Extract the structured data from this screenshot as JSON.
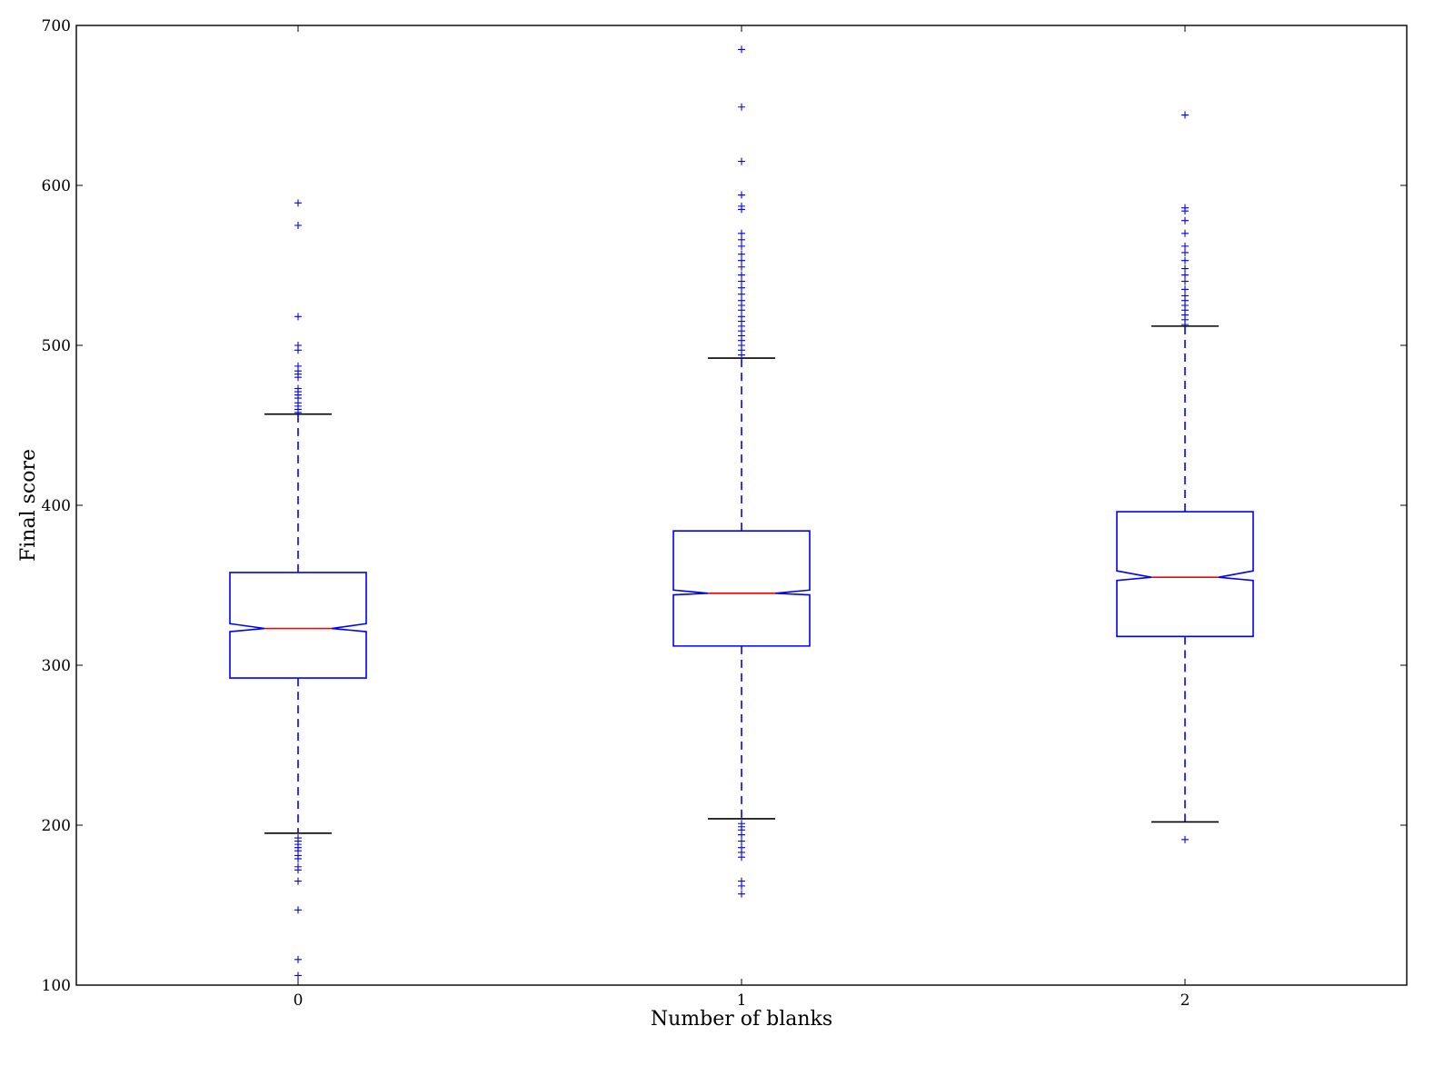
{
  "chart_data": {
    "type": "box",
    "title": "",
    "xlabel": "Number of blanks",
    "ylabel": "Final score",
    "ylim": [
      100,
      700
    ],
    "y_ticks": [
      100,
      200,
      300,
      400,
      500,
      600,
      700
    ],
    "categories": [
      "0",
      "1",
      "2"
    ],
    "notched": true,
    "grid": false,
    "colors": {
      "box": "#0000ff",
      "median": "#ff0000",
      "whisker_line": "#0000ff",
      "cap": "#000000",
      "flier": "#0000ff"
    },
    "boxes": [
      {
        "category": "0",
        "whisker_low": 195,
        "q1": 292,
        "median": 323,
        "q3": 358,
        "whisker_high": 457,
        "notch_low": 321,
        "notch_high": 326,
        "fliers": [
          106,
          116,
          147,
          165,
          172,
          174,
          179,
          181,
          184,
          186,
          188,
          190,
          192,
          458,
          460,
          462,
          464,
          467,
          469,
          471,
          473,
          480,
          482,
          484,
          487,
          497,
          500,
          518,
          575,
          589
        ]
      },
      {
        "category": "1",
        "whisker_low": 204,
        "q1": 312,
        "median": 345,
        "q3": 384,
        "whisker_high": 492,
        "notch_low": 344,
        "notch_high": 347,
        "fliers": [
          157,
          162,
          165,
          180,
          183,
          186,
          190,
          194,
          197,
          199,
          201,
          494,
          497,
          500,
          503,
          506,
          509,
          512,
          515,
          518,
          522,
          525,
          528,
          532,
          536,
          540,
          544,
          549,
          553,
          557,
          562,
          566,
          570,
          585,
          587,
          594,
          615,
          649,
          685
        ]
      },
      {
        "category": "2",
        "whisker_low": 202,
        "q1": 318,
        "median": 355,
        "q3": 396,
        "whisker_high": 512,
        "notch_low": 353,
        "notch_high": 359,
        "fliers": [
          191,
          513,
          516,
          519,
          522,
          525,
          528,
          531,
          535,
          540,
          544,
          548,
          553,
          558,
          562,
          570,
          578,
          584,
          586,
          644
        ]
      }
    ]
  }
}
